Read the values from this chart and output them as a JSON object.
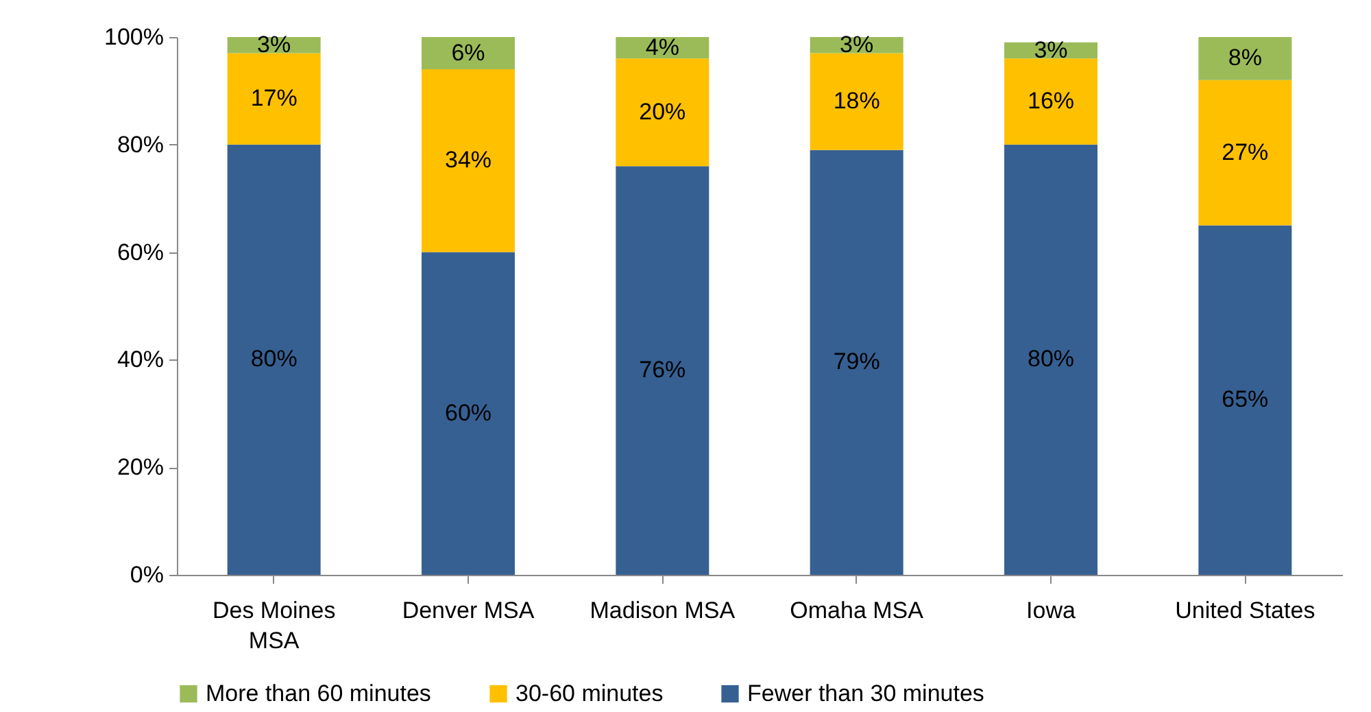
{
  "chart_data": {
    "type": "bar",
    "stacked": true,
    "categories": [
      "Des Moines MSA",
      "Denver MSA",
      "Madison MSA",
      "Omaha MSA",
      "Iowa",
      "United States"
    ],
    "series": [
      {
        "name": "Fewer than 30 minutes",
        "color": "#366092",
        "values": [
          80,
          60,
          76,
          79,
          80,
          65
        ],
        "value_labels": [
          "80%",
          "60%",
          "76%",
          "79%",
          "80%",
          "65%"
        ]
      },
      {
        "name": "30-60 minutes",
        "color": "#ffc000",
        "values": [
          17,
          34,
          20,
          18,
          16,
          27
        ],
        "value_labels": [
          "17%",
          "34%",
          "20%",
          "18%",
          "16%",
          "27%"
        ]
      },
      {
        "name": "More than 60 minutes",
        "color": "#9bbb59",
        "values": [
          3,
          6,
          4,
          3,
          3,
          8
        ],
        "value_labels": [
          "3%",
          "6%",
          "4%",
          "3%",
          "3%",
          "8%"
        ]
      }
    ],
    "ylim": [
      0,
      100
    ],
    "yticks": [
      {
        "value": 0,
        "label": "0%"
      },
      {
        "value": 20,
        "label": "20%"
      },
      {
        "value": 40,
        "label": "40%"
      },
      {
        "value": 60,
        "label": "60%"
      },
      {
        "value": 80,
        "label": "80%"
      },
      {
        "value": 100,
        "label": "100%"
      }
    ],
    "grid": false,
    "legend": "bottom"
  }
}
